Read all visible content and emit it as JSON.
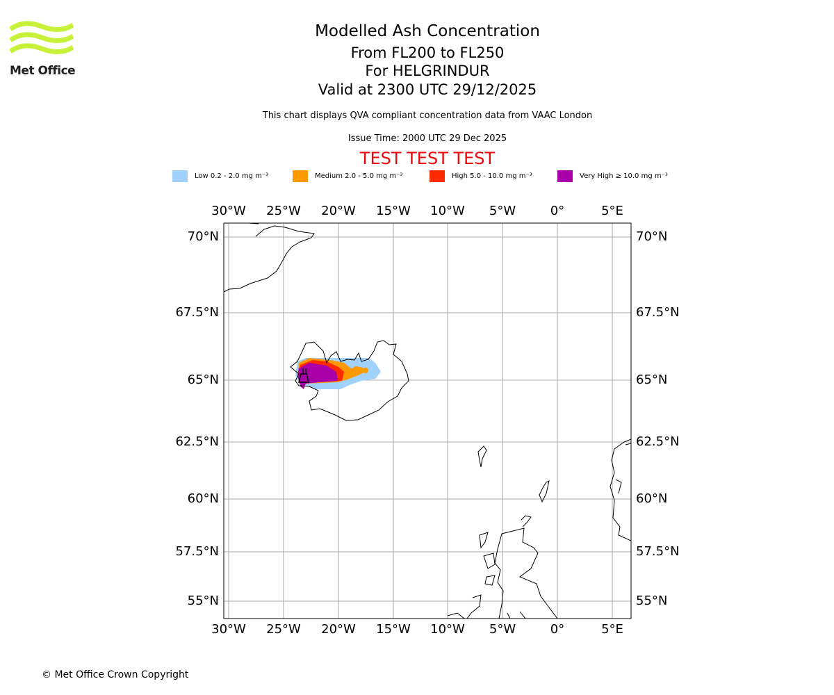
{
  "logo": {
    "text": "Met Office",
    "color": "#c8f23a"
  },
  "title": {
    "main": "Modelled Ash Concentration",
    "levels": "From FL200 to FL250",
    "volcano": "For HELGRINDUR",
    "valid": "Valid at 2300 UTC 29/12/2025"
  },
  "subtitle": "This chart displays QVA compliant concentration data from VAAC London",
  "issue_time": "Issue Time: 2000 UTC 29 Dec 2025",
  "test_banner": "TEST TEST TEST",
  "legend": [
    {
      "label": "Low 0.2 - 2.0 mg m⁻³",
      "color": "#a0d2fc"
    },
    {
      "label": "Medium 2.0 - 5.0 mg m⁻³",
      "color": "#ff9900"
    },
    {
      "label": "High 5.0 - 10.0 mg m⁻³",
      "color": "#ff2a00"
    },
    {
      "label": "Very High ≥ 10.0 mg m⁻³",
      "color": "#aa00aa"
    }
  ],
  "map": {
    "lon_labels": [
      "30°W",
      "25°W",
      "20°W",
      "15°W",
      "10°W",
      "5°W",
      "0°",
      "5°E"
    ],
    "lat_labels": [
      "70°N",
      "67.5°N",
      "65°N",
      "62.5°N",
      "60°N",
      "57.5°N",
      "55°N"
    ],
    "grid_color": "#aaaaaa"
  },
  "copyright": "© Met Office Crown Copyright"
}
